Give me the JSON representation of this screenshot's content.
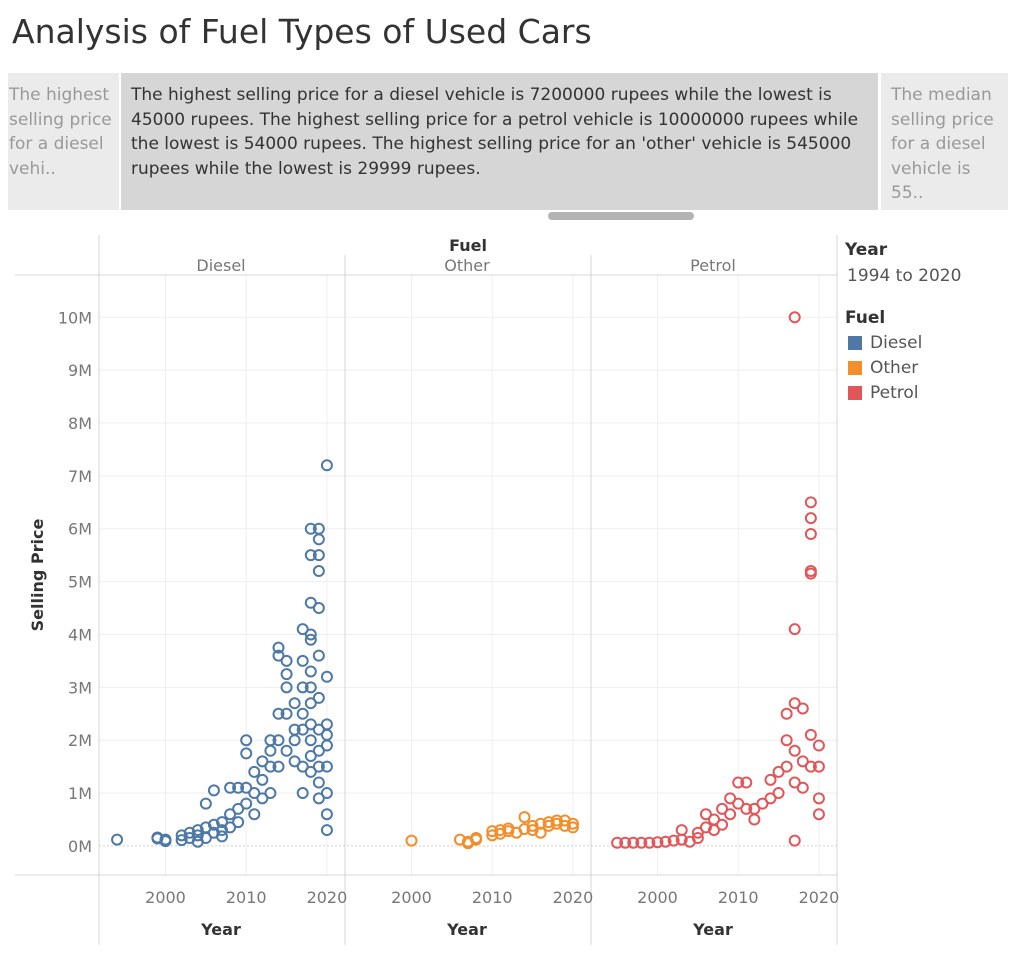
{
  "title": "Analysis of Fuel Types of Used Cars",
  "story": {
    "left": "The highest selling price for a diesel vehi..",
    "center": "The highest selling price for a diesel vehicle is 7200000 rupees while the lowest is 45000 rupees. The highest selling price for a petrol vehicle is 10000000 rupees while the lowest is 54000 rupees. The highest selling price for an 'other' vehicle is 545000 rupees while the lowest is 29999 rupees.",
    "right": "The median selling price for a diesel vehicle is 55.."
  },
  "legend": {
    "year_title": "Year",
    "year_range": "1994 to 2020",
    "fuel_title": "Fuel",
    "items": [
      {
        "label": "Diesel",
        "color": "#4e79a7"
      },
      {
        "label": "Other",
        "color": "#f28e2b"
      },
      {
        "label": "Petrol",
        "color": "#e15759"
      }
    ]
  },
  "chart_data": {
    "type": "scatter",
    "facet_title": "Fuel",
    "xlabel": "Year",
    "ylabel": "Selling Price",
    "xlim": [
      1993,
      2021
    ],
    "ylim": [
      -550000,
      10800000
    ],
    "x_ticks": [
      "2000",
      "2010",
      "2020"
    ],
    "y_ticks": [
      "0M",
      "1M",
      "2M",
      "3M",
      "4M",
      "5M",
      "6M",
      "7M",
      "8M",
      "9M",
      "10M"
    ],
    "y_tick_values": [
      0,
      1000000,
      2000000,
      3000000,
      4000000,
      5000000,
      6000000,
      7000000,
      8000000,
      9000000,
      10000000
    ],
    "grid": true,
    "series": [
      {
        "name": "Diesel",
        "color": "#4e79a7",
        "points": [
          [
            1994,
            120000
          ],
          [
            1999,
            160000
          ],
          [
            1999,
            140000
          ],
          [
            2000,
            120000
          ],
          [
            2000,
            90000
          ],
          [
            2002,
            200000
          ],
          [
            2002,
            110000
          ],
          [
            2003,
            250000
          ],
          [
            2003,
            150000
          ],
          [
            2004,
            200000
          ],
          [
            2004,
            80000
          ],
          [
            2004,
            300000
          ],
          [
            2005,
            350000
          ],
          [
            2005,
            150000
          ],
          [
            2005,
            800000
          ],
          [
            2006,
            1050000
          ],
          [
            2006,
            400000
          ],
          [
            2006,
            250000
          ],
          [
            2007,
            450000
          ],
          [
            2007,
            300000
          ],
          [
            2007,
            180000
          ],
          [
            2008,
            600000
          ],
          [
            2008,
            1100000
          ],
          [
            2008,
            350000
          ],
          [
            2009,
            700000
          ],
          [
            2009,
            1100000
          ],
          [
            2009,
            450000
          ],
          [
            2010,
            2000000
          ],
          [
            2010,
            1750000
          ],
          [
            2010,
            1100000
          ],
          [
            2010,
            800000
          ],
          [
            2011,
            1000000
          ],
          [
            2011,
            1400000
          ],
          [
            2011,
            600000
          ],
          [
            2012,
            1600000
          ],
          [
            2012,
            1250000
          ],
          [
            2012,
            900000
          ],
          [
            2013,
            1800000
          ],
          [
            2013,
            1500000
          ],
          [
            2013,
            2000000
          ],
          [
            2013,
            1000000
          ],
          [
            2014,
            3750000
          ],
          [
            2014,
            3600000
          ],
          [
            2014,
            2500000
          ],
          [
            2014,
            2000000
          ],
          [
            2014,
            1500000
          ],
          [
            2015,
            3500000
          ],
          [
            2015,
            3250000
          ],
          [
            2015,
            3000000
          ],
          [
            2015,
            2500000
          ],
          [
            2015,
            1800000
          ],
          [
            2016,
            2700000
          ],
          [
            2016,
            2200000
          ],
          [
            2016,
            1600000
          ],
          [
            2016,
            2000000
          ],
          [
            2017,
            4100000
          ],
          [
            2017,
            3500000
          ],
          [
            2017,
            3000000
          ],
          [
            2017,
            2500000
          ],
          [
            2017,
            2200000
          ],
          [
            2017,
            1500000
          ],
          [
            2017,
            1000000
          ],
          [
            2018,
            6000000
          ],
          [
            2018,
            5500000
          ],
          [
            2018,
            4600000
          ],
          [
            2018,
            4000000
          ],
          [
            2018,
            3900000
          ],
          [
            2018,
            3300000
          ],
          [
            2018,
            3000000
          ],
          [
            2018,
            2700000
          ],
          [
            2018,
            2300000
          ],
          [
            2018,
            2000000
          ],
          [
            2018,
            1700000
          ],
          [
            2018,
            1400000
          ],
          [
            2019,
            6000000
          ],
          [
            2019,
            5800000
          ],
          [
            2019,
            5500000
          ],
          [
            2019,
            5200000
          ],
          [
            2019,
            4500000
          ],
          [
            2019,
            3600000
          ],
          [
            2019,
            2800000
          ],
          [
            2019,
            2200000
          ],
          [
            2019,
            1800000
          ],
          [
            2019,
            1500000
          ],
          [
            2019,
            1200000
          ],
          [
            2019,
            900000
          ],
          [
            2020,
            7200000
          ],
          [
            2020,
            3200000
          ],
          [
            2020,
            2300000
          ],
          [
            2020,
            2100000
          ],
          [
            2020,
            1900000
          ],
          [
            2020,
            1500000
          ],
          [
            2020,
            1000000
          ],
          [
            2020,
            600000
          ],
          [
            2020,
            300000
          ]
        ]
      },
      {
        "name": "Other",
        "color": "#f28e2b",
        "points": [
          [
            2000,
            100000
          ],
          [
            2006,
            120000
          ],
          [
            2007,
            50000
          ],
          [
            2007,
            80000
          ],
          [
            2008,
            150000
          ],
          [
            2008,
            120000
          ],
          [
            2010,
            200000
          ],
          [
            2010,
            280000
          ],
          [
            2011,
            300000
          ],
          [
            2011,
            230000
          ],
          [
            2012,
            280000
          ],
          [
            2012,
            330000
          ],
          [
            2013,
            250000
          ],
          [
            2014,
            545000
          ],
          [
            2014,
            320000
          ],
          [
            2015,
            300000
          ],
          [
            2015,
            380000
          ],
          [
            2016,
            420000
          ],
          [
            2016,
            250000
          ],
          [
            2017,
            380000
          ],
          [
            2017,
            450000
          ],
          [
            2018,
            420000
          ],
          [
            2018,
            480000
          ],
          [
            2019,
            380000
          ],
          [
            2019,
            480000
          ],
          [
            2020,
            420000
          ],
          [
            2020,
            350000
          ]
        ]
      },
      {
        "name": "Petrol",
        "color": "#e15759",
        "points": [
          [
            1995,
            60000
          ],
          [
            1996,
            60000
          ],
          [
            1997,
            60000
          ],
          [
            1998,
            60000
          ],
          [
            1999,
            60000
          ],
          [
            2000,
            70000
          ],
          [
            2001,
            80000
          ],
          [
            2002,
            100000
          ],
          [
            2003,
            120000
          ],
          [
            2003,
            300000
          ],
          [
            2004,
            80000
          ],
          [
            2005,
            150000
          ],
          [
            2005,
            250000
          ],
          [
            2006,
            350000
          ],
          [
            2006,
            600000
          ],
          [
            2007,
            500000
          ],
          [
            2007,
            300000
          ],
          [
            2008,
            400000
          ],
          [
            2008,
            700000
          ],
          [
            2009,
            900000
          ],
          [
            2009,
            600000
          ],
          [
            2010,
            1200000
          ],
          [
            2010,
            800000
          ],
          [
            2011,
            1200000
          ],
          [
            2011,
            700000
          ],
          [
            2012,
            700000
          ],
          [
            2012,
            500000
          ],
          [
            2013,
            800000
          ],
          [
            2014,
            1250000
          ],
          [
            2014,
            900000
          ],
          [
            2015,
            1400000
          ],
          [
            2015,
            1000000
          ],
          [
            2016,
            2500000
          ],
          [
            2016,
            2000000
          ],
          [
            2016,
            1500000
          ],
          [
            2017,
            10000000
          ],
          [
            2017,
            4100000
          ],
          [
            2017,
            2700000
          ],
          [
            2017,
            1800000
          ],
          [
            2017,
            1200000
          ],
          [
            2017,
            100000
          ],
          [
            2018,
            2600000
          ],
          [
            2018,
            1600000
          ],
          [
            2018,
            1100000
          ],
          [
            2019,
            6500000
          ],
          [
            2019,
            6200000
          ],
          [
            2019,
            5900000
          ],
          [
            2019,
            5200000
          ],
          [
            2019,
            5150000
          ],
          [
            2019,
            2100000
          ],
          [
            2019,
            1500000
          ],
          [
            2020,
            1900000
          ],
          [
            2020,
            1500000
          ],
          [
            2020,
            900000
          ],
          [
            2020,
            600000
          ]
        ]
      }
    ]
  }
}
